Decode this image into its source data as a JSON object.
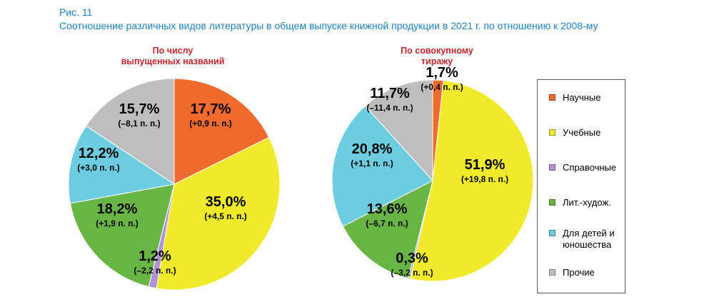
{
  "figure": {
    "label": "Рис. 11",
    "title": "Соотношение различных видов литературы в общем выпуске книжной продукции  в 2021 г. по отношению к 2008-му"
  },
  "colors": {
    "Научные": "#ee6b2d",
    "Учебные": "#f0ea2a",
    "Справочные": "#b294d6",
    "Лит.-худож.": "#68b545",
    "Для детей и юношества": "#6ccde0",
    "Прочие": "#bebebe"
  },
  "legend": [
    {
      "name": "Научные",
      "label": "Научные"
    },
    {
      "name": "Учебные",
      "label": "Учебные"
    },
    {
      "name": "Справочные",
      "label": "Справочные"
    },
    {
      "name": "Лит.-худож.",
      "label": "Лит.-худож."
    },
    {
      "name": "Для детей и юношества",
      "label": "Для детей и\nюношества"
    },
    {
      "name": "Прочие",
      "label": "Прочие"
    }
  ],
  "chart_data": [
    {
      "type": "pie",
      "title": "По числу\nвыпущенных названий",
      "slices": [
        {
          "name": "Научные",
          "value": 17.7,
          "label": "17,7%",
          "change": "(+0,9 п. п.)"
        },
        {
          "name": "Учебные",
          "value": 35.0,
          "label": "35,0%",
          "change": "(+4,5 п. п.)"
        },
        {
          "name": "Справочные",
          "value": 1.2,
          "label": "1,2%",
          "change": "(–2,2 п. п.)"
        },
        {
          "name": "Лит.-худож.",
          "value": 18.2,
          "label": "18,2%",
          "change": "(+1,9 п. п.)"
        },
        {
          "name": "Для детей и юношества",
          "value": 12.2,
          "label": "12,2%",
          "change": "(+3,0 п. п.)"
        },
        {
          "name": "Прочие",
          "value": 15.7,
          "label": "15,7%",
          "change": "(–8,1 п. п.)"
        }
      ]
    },
    {
      "type": "pie",
      "title": "По совокупному\nтиражу",
      "slices": [
        {
          "name": "Научные",
          "value": 1.7,
          "label": "1,7%",
          "change": "(+0,4 п. п.)"
        },
        {
          "name": "Учебные",
          "value": 51.9,
          "label": "51,9%",
          "change": "(+19,8 п. п.)"
        },
        {
          "name": "Справочные",
          "value": 0.3,
          "label": "0,3%",
          "change": "(–3,2 п. п.)"
        },
        {
          "name": "Лит.-худож.",
          "value": 13.6,
          "label": "13,6%",
          "change": "(–6,7 п. п.)"
        },
        {
          "name": "Для детей и юношества",
          "value": 20.8,
          "label": "20,8%",
          "change": "(+1,1 п. п.)"
        },
        {
          "name": "Прочие",
          "value": 11.7,
          "label": "11,7%",
          "change": "(–11,4 п. п.)"
        }
      ]
    }
  ]
}
